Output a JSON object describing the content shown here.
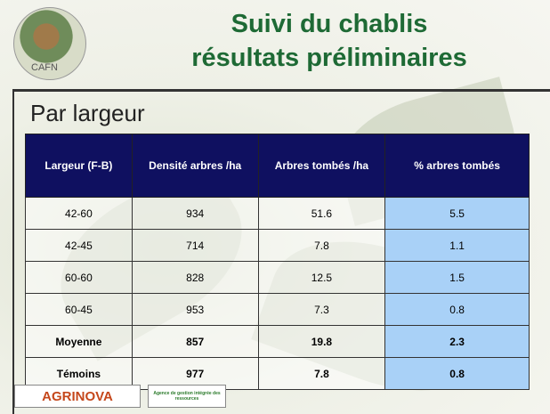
{
  "header": {
    "title_line1": "Suivi du chablis",
    "title_line2": "résultats préliminaires",
    "logo_text": "CAFN"
  },
  "subtitle": "Par largeur",
  "table": {
    "columns": [
      "Largeur  (F-B)",
      "Densité arbres /ha",
      "Arbres tombés /ha",
      "% arbres tombés"
    ],
    "rows": [
      [
        "42-60",
        "934",
        "51.6",
        "5.5"
      ],
      [
        "42-45",
        "714",
        "7.8",
        "1.1"
      ],
      [
        "60-60",
        "828",
        "12.5",
        "1.5"
      ],
      [
        "60-45",
        "953",
        "7.3",
        "0.8"
      ],
      [
        "Moyenne",
        "857",
        "19.8",
        "2.3"
      ],
      [
        "Témoins",
        "977",
        "7.8",
        "0.8"
      ]
    ],
    "bold_rows": [
      4,
      5
    ]
  },
  "footer": {
    "logo1": "AGRINOVA",
    "logo2": "Agence de gestion intégrée des ressources"
  }
}
